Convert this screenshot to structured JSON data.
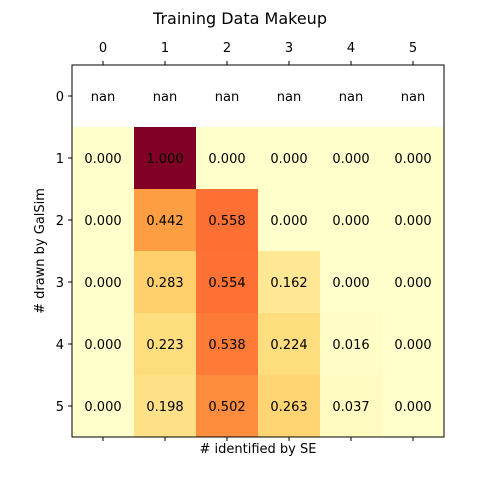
{
  "chart_data": {
    "type": "heatmap",
    "title": "Training Data Makeup",
    "xlabel": "# identified by SE",
    "ylabel": "# drawn by GalSim",
    "x_ticks": [
      "0",
      "1",
      "2",
      "3",
      "4",
      "5"
    ],
    "y_ticks": [
      "0",
      "1",
      "2",
      "3",
      "4",
      "5"
    ],
    "x_tick_position": "top",
    "colormap": "YlOrRd",
    "vmin": 0,
    "vmax": 1,
    "cell_labels": [
      [
        "nan",
        "nan",
        "nan",
        "nan",
        "nan",
        "nan"
      ],
      [
        "0.000",
        "1.000",
        "0.000",
        "0.000",
        "0.000",
        "0.000"
      ],
      [
        "0.000",
        "0.442",
        "0.558",
        "0.000",
        "0.000",
        "0.000"
      ],
      [
        "0.000",
        "0.283",
        "0.554",
        "0.162",
        "0.000",
        "0.000"
      ],
      [
        "0.000",
        "0.223",
        "0.538",
        "0.224",
        "0.016",
        "0.000"
      ],
      [
        "0.000",
        "0.198",
        "0.502",
        "0.263",
        "0.037",
        "0.000"
      ]
    ],
    "values": [
      [
        null,
        null,
        null,
        null,
        null,
        null
      ],
      [
        0.0,
        1.0,
        0.0,
        0.0,
        0.0,
        0.0
      ],
      [
        0.0,
        0.442,
        0.558,
        0.0,
        0.0,
        0.0
      ],
      [
        0.0,
        0.283,
        0.554,
        0.162,
        0.0,
        0.0
      ],
      [
        0.0,
        0.223,
        0.538,
        0.224,
        0.016,
        0.0
      ],
      [
        0.0,
        0.198,
        0.502,
        0.263,
        0.037,
        0.0
      ]
    ]
  }
}
